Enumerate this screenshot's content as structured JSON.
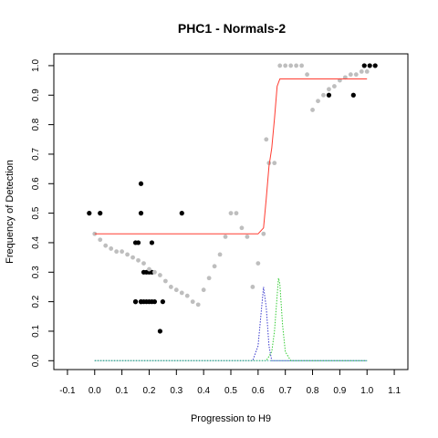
{
  "chart_data": {
    "type": "scatter",
    "title": "PHC1 - Normals-2",
    "xlabel": "Progression to H9",
    "ylabel": "Frequency of Detection",
    "xlim": [
      -0.15,
      1.15
    ],
    "ylim": [
      -0.03,
      1.04
    ],
    "x_ticks": [
      -0.1,
      0.0,
      0.1,
      0.2,
      0.3,
      0.4,
      0.5,
      0.6,
      0.7,
      0.8,
      0.9,
      1.0,
      1.1
    ],
    "x_tick_labels": [
      "-0.1",
      "0.0",
      "0.1",
      "0.2",
      "0.3",
      "0.4",
      "0.5",
      "0.6",
      "0.7",
      "0.8",
      "0.9",
      "1.0",
      "1.1"
    ],
    "y_ticks": [
      0.0,
      0.1,
      0.2,
      0.3,
      0.4,
      0.5,
      0.6,
      0.7,
      0.8,
      0.9,
      1.0
    ],
    "y_tick_labels": [
      "0.0",
      "0.1",
      "0.2",
      "0.3",
      "0.4",
      "0.5",
      "0.6",
      "0.7",
      "0.8",
      "0.9",
      "1.0"
    ],
    "grid": false,
    "legend": "none",
    "colors": {
      "observed": "#000000",
      "smoothed": "#bebebe",
      "fit": "#ff3b30",
      "density_blue": "#3a3acd",
      "density_green": "#33cc33",
      "baseline": "#3aa6a6"
    },
    "series": [
      {
        "kind": "points",
        "style": "black-dots",
        "x": [
          -0.02,
          0.02,
          0.15,
          0.16,
          0.17,
          0.17,
          0.21,
          0.32,
          0.15,
          0.17,
          0.18,
          0.19,
          0.2,
          0.21,
          0.15,
          0.17,
          0.18,
          0.19,
          0.2,
          0.21,
          0.22,
          0.25,
          0.24,
          0.86,
          0.95,
          0.99,
          1.01,
          1.03
        ],
        "y": [
          0.5,
          0.5,
          0.4,
          0.4,
          0.6,
          0.5,
          0.4,
          0.5,
          0.2,
          0.2,
          0.3,
          0.3,
          0.3,
          0.3,
          0.2,
          0.2,
          0.2,
          0.2,
          0.2,
          0.2,
          0.2,
          0.2,
          0.1,
          0.9,
          0.9,
          1.0,
          1.0,
          1.0
        ]
      },
      {
        "kind": "points",
        "style": "grey-smoothed",
        "x": [
          0.0,
          0.02,
          0.04,
          0.06,
          0.08,
          0.1,
          0.12,
          0.14,
          0.16,
          0.18,
          0.2,
          0.22,
          0.24,
          0.26,
          0.28,
          0.3,
          0.32,
          0.34,
          0.36,
          0.38,
          0.4,
          0.42,
          0.44,
          0.46,
          0.48,
          0.5,
          0.52,
          0.54,
          0.56,
          0.58,
          0.6,
          0.62,
          0.63,
          0.64,
          0.66,
          0.68,
          0.7,
          0.72,
          0.74,
          0.76,
          0.78,
          0.8,
          0.82,
          0.84,
          0.86,
          0.88,
          0.9,
          0.92,
          0.94,
          0.96,
          0.98,
          1.0
        ],
        "y": [
          0.43,
          0.41,
          0.39,
          0.38,
          0.37,
          0.37,
          0.36,
          0.35,
          0.34,
          0.33,
          0.31,
          0.3,
          0.29,
          0.27,
          0.25,
          0.24,
          0.23,
          0.22,
          0.2,
          0.19,
          0.24,
          0.28,
          0.32,
          0.36,
          0.42,
          0.5,
          0.5,
          0.45,
          0.42,
          0.25,
          0.33,
          0.43,
          0.75,
          0.67,
          0.67,
          1.0,
          1.0,
          1.0,
          1.0,
          1.0,
          0.97,
          0.85,
          0.88,
          0.9,
          0.92,
          0.93,
          0.95,
          0.96,
          0.97,
          0.97,
          0.98,
          0.98
        ]
      },
      {
        "kind": "line",
        "style": "red-fit",
        "x": [
          0.0,
          0.1,
          0.2,
          0.3,
          0.4,
          0.5,
          0.6,
          0.62,
          0.63,
          0.64,
          0.65,
          0.66,
          0.67,
          0.68,
          0.7,
          0.8,
          0.9,
          1.0
        ],
        "y": [
          0.43,
          0.43,
          0.43,
          0.43,
          0.43,
          0.43,
          0.43,
          0.45,
          0.55,
          0.66,
          0.72,
          0.82,
          0.93,
          0.955,
          0.955,
          0.955,
          0.955,
          0.955
        ]
      },
      {
        "kind": "line",
        "style": "blue-dotted",
        "x": [
          0.0,
          0.5,
          0.58,
          0.6,
          0.61,
          0.62,
          0.63,
          0.64,
          0.65,
          0.68,
          1.0
        ],
        "y": [
          0.0,
          0.0,
          0.0,
          0.05,
          0.15,
          0.25,
          0.18,
          0.05,
          0.0,
          0.0,
          0.0
        ]
      },
      {
        "kind": "line",
        "style": "green-dotted",
        "x": [
          0.0,
          0.5,
          0.63,
          0.65,
          0.66,
          0.67,
          0.675,
          0.68,
          0.69,
          0.7,
          0.72,
          1.0
        ],
        "y": [
          0.0,
          0.0,
          0.0,
          0.03,
          0.1,
          0.22,
          0.28,
          0.26,
          0.12,
          0.03,
          0.0,
          0.0
        ]
      }
    ]
  }
}
